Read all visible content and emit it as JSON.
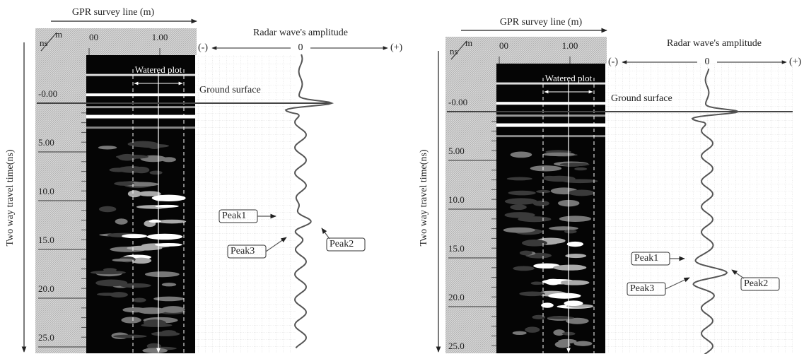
{
  "panels": [
    {
      "survey_line_label": "GPR survey line (m)",
      "unit_m": "m",
      "unit_ns": "ns",
      "x_ticks": [
        "00",
        "1.00"
      ],
      "y_axis_label": "Two way travel time(ns)",
      "y_ticks": [
        "-0.00",
        "5.00",
        "10.0",
        "15.0",
        "20.0",
        "25.0"
      ],
      "amplitude_label": "Radar wave's amplitude",
      "amplitude_ticks": [
        "(-)",
        "0",
        "(+)"
      ],
      "watered_plot": "Watered plot",
      "ground_surface": "Ground surface",
      "peaks": [
        "Peak1",
        "Peak2",
        "Peak3"
      ]
    },
    {
      "survey_line_label": "GPR survey line (m)",
      "unit_m": "m",
      "unit_ns": "ns",
      "x_ticks": [
        "00",
        "1.00"
      ],
      "y_axis_label": "Two way travel time(ns)",
      "y_ticks": [
        "-0.00",
        "5.00",
        "10.0",
        "15.0",
        "20.0",
        "25.0"
      ],
      "amplitude_label": "Radar wave's amplitude",
      "amplitude_ticks": [
        "(-)",
        "0",
        "(+)"
      ],
      "watered_plot": "Watered plot",
      "ground_surface": "Ground surface",
      "peaks": [
        "Peak1",
        "Peak2",
        "Peak3"
      ]
    }
  ]
}
